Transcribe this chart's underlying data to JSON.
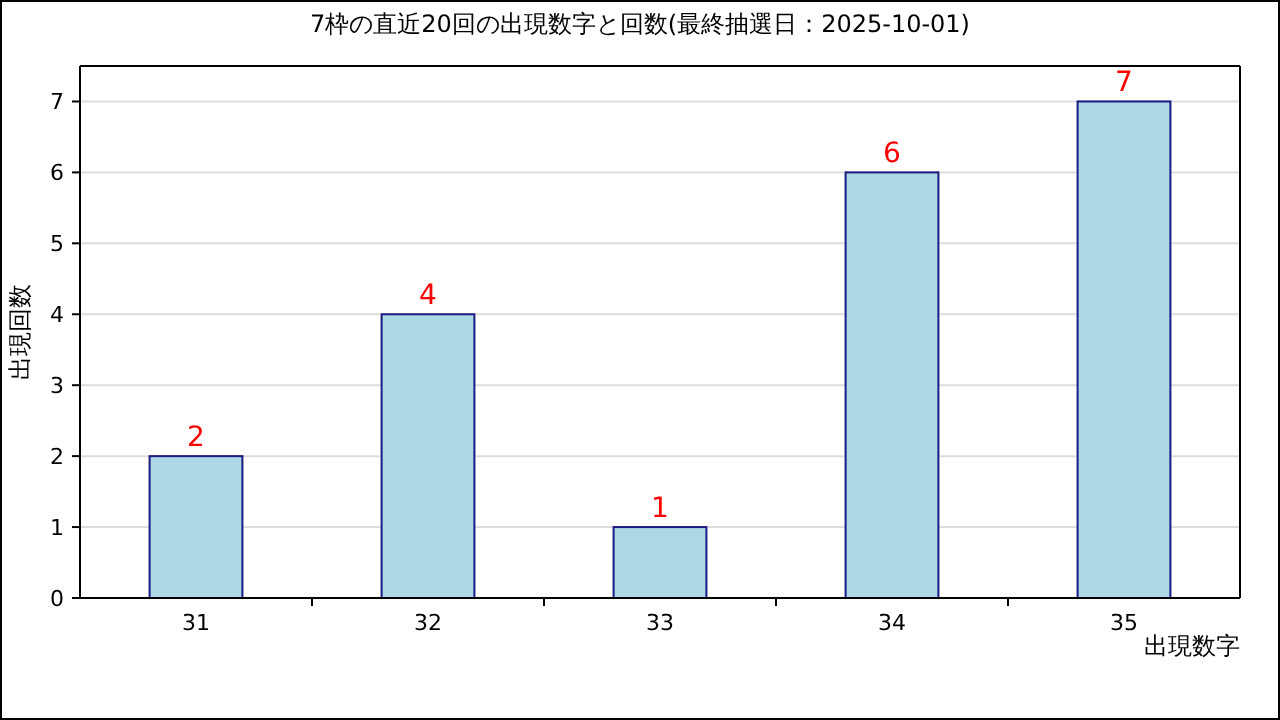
{
  "chart_data": {
    "type": "bar",
    "title": "7枠の直近20回の出現数字と回数(最終抽選日：2025-10-01)",
    "xlabel": "出現数字",
    "ylabel": "出現回数",
    "categories": [
      "31",
      "32",
      "33",
      "34",
      "35"
    ],
    "values": [
      2,
      4,
      1,
      6,
      7
    ],
    "color": "#add8e6",
    "ylim": [
      0,
      7.5
    ],
    "yticks": [
      0,
      1,
      2,
      3,
      4,
      5,
      6,
      7
    ],
    "grid": "y",
    "data_labels": true
  }
}
